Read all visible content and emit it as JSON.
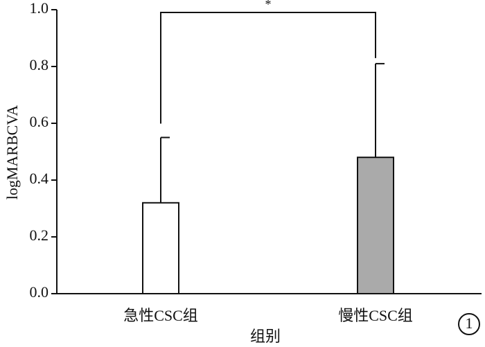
{
  "chart_data": {
    "type": "bar",
    "ylabel": "logMARBCVA",
    "xlabel": "组别",
    "categories": [
      "急性CSC组",
      "慢性CSC组"
    ],
    "values": [
      0.32,
      0.48
    ],
    "errors": [
      0.23,
      0.33
    ],
    "colors": [
      "#ffffff",
      "#aaaaaa"
    ],
    "ylim": [
      0,
      1
    ],
    "yticks": [
      {
        "value": 0,
        "label": "0.0"
      },
      0.2,
      0.4,
      0.6,
      0.8,
      {
        "value": 1,
        "label": "1.0"
      }
    ],
    "significance": "*",
    "figure_label": "1"
  }
}
